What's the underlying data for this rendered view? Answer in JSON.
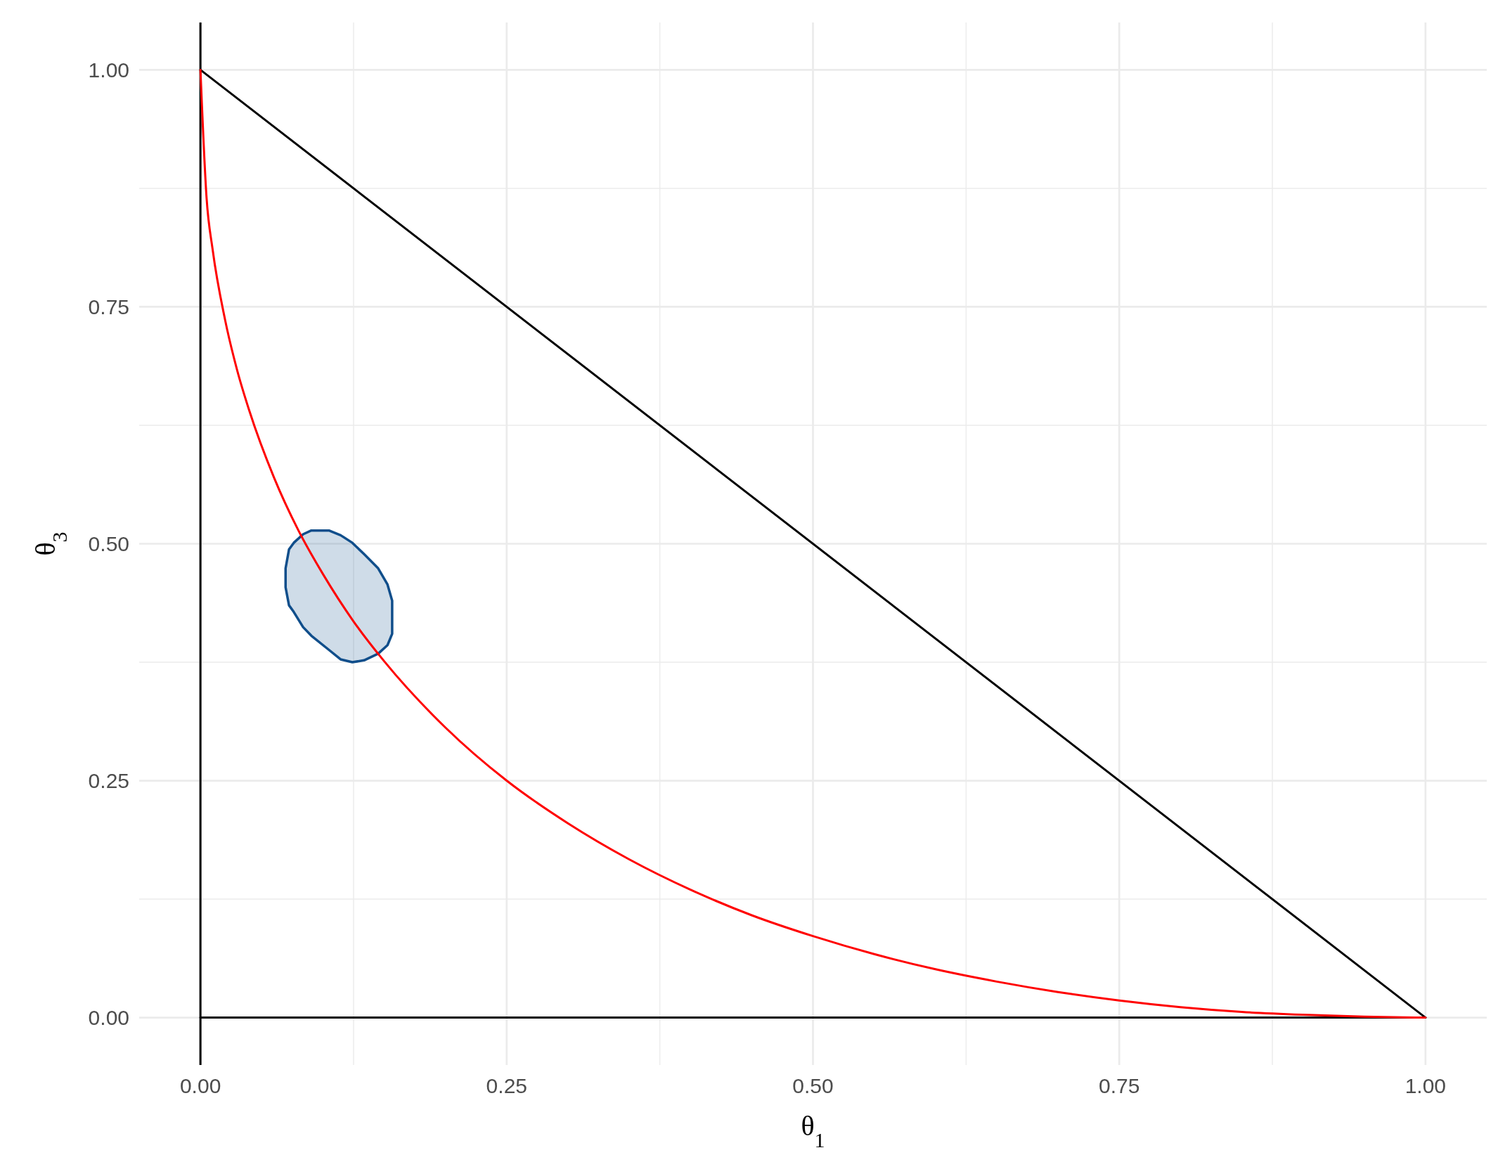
{
  "chart_data": {
    "type": "line",
    "xlabel": "θ$_{1}$",
    "ylabel": "θ$_{3}$",
    "xlim": [
      -0.05,
      1.05
    ],
    "ylim": [
      -0.05,
      1.05
    ],
    "xticks": [
      {
        "value": 0,
        "label": "0.00"
      },
      {
        "value": 0.125,
        "label": null
      },
      {
        "value": 0.25,
        "label": "0.25"
      },
      {
        "value": 0.375,
        "label": null
      },
      {
        "value": 0.5,
        "label": "0.50"
      },
      {
        "value": 0.625,
        "label": null
      },
      {
        "value": 0.75,
        "label": "0.75"
      },
      {
        "value": 0.875,
        "label": null
      },
      {
        "value": 1,
        "label": "1.00"
      }
    ],
    "yticks": [
      {
        "value": 0,
        "label": "0.00"
      },
      {
        "value": 0.125,
        "label": null
      },
      {
        "value": 0.25,
        "label": "0.25"
      },
      {
        "value": 0.375,
        "label": null
      },
      {
        "value": 0.5,
        "label": "0.50"
      },
      {
        "value": 0.625,
        "label": null
      },
      {
        "value": 0.75,
        "label": "0.75"
      },
      {
        "value": 0.875,
        "label": null
      },
      {
        "value": 1,
        "label": "1.00"
      }
    ],
    "grid": true,
    "line_style": "solid",
    "marker": "none",
    "ref_lines": [
      {
        "axis": "x",
        "value": 0,
        "color": "#000000"
      }
    ],
    "series": [
      {
        "color": "#000000",
        "x": [
          0,
          1
        ],
        "values": [
          1,
          0
        ]
      },
      {
        "color": "#000000",
        "x": [
          0,
          1
        ],
        "values": [
          0,
          0
        ]
      },
      {
        "type": "line",
        "color": "#ff0000",
        "x": [
          0,
          0.005,
          0.01,
          0.02,
          0.03,
          0.04,
          0.06,
          0.08,
          0.1,
          0.125,
          0.15,
          0.2,
          0.25,
          0.3,
          0.35,
          0.4,
          0.45,
          0.5,
          0.55,
          0.6,
          0.65,
          0.7,
          0.75,
          0.8,
          0.85,
          0.9,
          0.95,
          1
        ],
        "values": [
          1,
          0.865,
          0.81,
          0.737,
          0.683,
          0.64,
          0.57,
          0.514,
          0.468,
          0.418,
          0.376,
          0.306,
          0.25,
          0.205,
          0.167,
          0.135,
          0.108,
          0.086,
          0.067,
          0.051,
          0.038,
          0.027,
          0.018,
          0.011,
          0.006,
          0.003,
          0.001,
          0
        ]
      }
    ]
  }
}
